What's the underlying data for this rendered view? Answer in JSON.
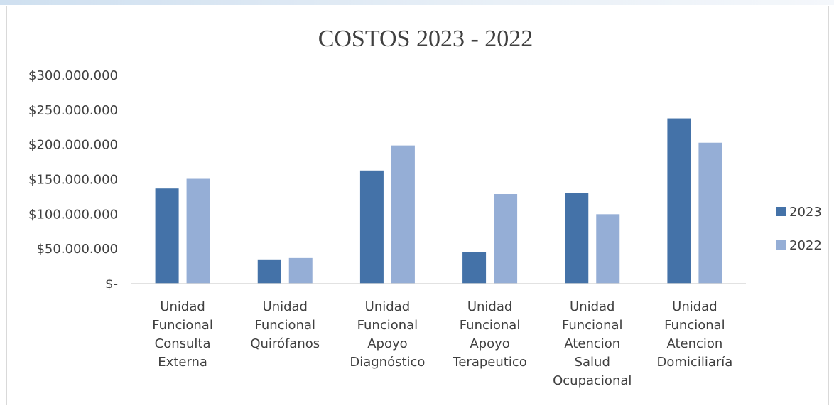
{
  "chart_data": {
    "type": "bar",
    "title": "COSTOS 2023 - 2022",
    "xlabel": "",
    "ylabel": "",
    "ylim": [
      0,
      300000000
    ],
    "yticks": [
      0,
      50000000,
      100000000,
      150000000,
      200000000,
      250000000,
      300000000
    ],
    "ytick_labels": [
      "$-",
      "$50.000.000",
      "$100.000.000",
      "$150.000.000",
      "$200.000.000",
      "$250.000.000",
      "$300.000.000"
    ],
    "categories": [
      "Unidad Funcional Consulta Externa",
      "Unidad Funcional Quirófanos",
      "Unidad Funcional Apoyo Diagnóstico",
      "Unidad Funcional Apoyo Terapeutico",
      "Unidad Funcional Atencion Salud Ocupacional",
      "Unidad Funcional Atencion Domiciliaría"
    ],
    "category_lines": [
      [
        "Unidad",
        "Funcional",
        "Consulta",
        "Externa"
      ],
      [
        "Unidad",
        "Funcional",
        "Quirófanos"
      ],
      [
        "Unidad",
        "Funcional",
        "Apoyo",
        "Diagnóstico"
      ],
      [
        "Unidad",
        "Funcional",
        "Apoyo",
        "Terapeutico"
      ],
      [
        "Unidad",
        "Funcional",
        "Atencion",
        "Salud",
        "Ocupacional"
      ],
      [
        "Unidad",
        "Funcional",
        "Atencion",
        "Domiciliaría"
      ]
    ],
    "series": [
      {
        "name": "2023",
        "color": "#4472a8",
        "values": [
          137000000,
          35000000,
          163000000,
          46000000,
          131000000,
          238000000
        ]
      },
      {
        "name": "2022",
        "color": "#95aed6",
        "values": [
          151000000,
          37000000,
          199000000,
          129000000,
          100000000,
          203000000
        ]
      }
    ],
    "grid": false,
    "legend": "right"
  }
}
